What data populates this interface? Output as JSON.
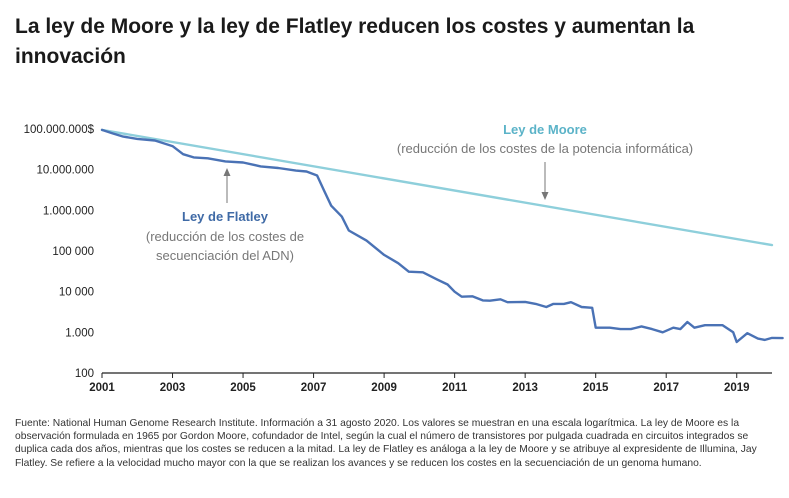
{
  "title": "La ley de Moore y la ley de Flatley reducen los costes y aumentan la innovación",
  "footnote": "Fuente: National Human Genome Research Institute. Información a 31 agosto 2020. Los valores se muestran en una escala logarítmica. La ley de Moore es la observación formulada en 1965 por Gordon Moore, cofundador de Intel, según la cual el número de transistores por pulgada cuadrada en circuitos integrados se duplica cada dos años, mientras que los costes se reducen a la mitad. La ley de Flatley es análoga a la ley de Moore y se atribuye al expresidente de Illumina, Jay Flatley. Se refiere a la velocidad mucho mayor con la que se realizan los avances y se reducen los costes en la secuenciación de un genoma humano.",
  "colors": {
    "moore": "#8ecfdb",
    "flatley": "#4a72b5",
    "moore_text": "#5bb3c8",
    "flatley_text": "#3f6aa6",
    "annotation": "#777777",
    "axis": "#222222"
  },
  "annotations": {
    "moore": {
      "title": "Ley de Moore",
      "subtitle": "(reducción de los costes de la potencia informática)"
    },
    "flatley": {
      "title": "Ley de Flatley",
      "subtitle_1": "(reducción de los costes de",
      "subtitle_2": "secuenciación del ADN)"
    }
  },
  "chart_data": {
    "type": "line",
    "title": "La ley de Moore y la ley de Flatley reducen los costes y aumentan la innovación",
    "y_scale": "log",
    "xlim": [
      2001,
      2020
    ],
    "ylim": [
      100,
      100000000
    ],
    "y_ticks": [
      {
        "value": 100000000,
        "label": "100.000.000$"
      },
      {
        "value": 10000000,
        "label": "10.000.000"
      },
      {
        "value": 1000000,
        "label": "1.000.000"
      },
      {
        "value": 100000,
        "label": "100 000"
      },
      {
        "value": 10000,
        "label": "10 000"
      },
      {
        "value": 1000,
        "label": "1.000"
      },
      {
        "value": 100,
        "label": "100"
      }
    ],
    "x_ticks": [
      {
        "value": 2001,
        "label": "2001"
      },
      {
        "value": 2003,
        "label": "2003"
      },
      {
        "value": 2005,
        "label": "2005"
      },
      {
        "value": 2007,
        "label": "2007"
      },
      {
        "value": 2009,
        "label": "2009"
      },
      {
        "value": 2011,
        "label": "2011"
      },
      {
        "value": 2013,
        "label": "2013"
      },
      {
        "value": 2015,
        "label": "2015"
      },
      {
        "value": 2017,
        "label": "2017"
      },
      {
        "value": 2019,
        "label": "2019"
      }
    ],
    "series": [
      {
        "name": "Ley de Moore",
        "points": [
          [
            2001.0,
            95000000
          ],
          [
            2020.0,
            140000
          ]
        ]
      },
      {
        "name": "Ley de Flatley",
        "points": [
          [
            2001.0,
            95000000
          ],
          [
            2001.3,
            78000000
          ],
          [
            2001.6,
            65000000
          ],
          [
            2002.0,
            57000000
          ],
          [
            2002.5,
            52000000
          ],
          [
            2003.0,
            38000000
          ],
          [
            2003.3,
            24000000
          ],
          [
            2003.6,
            20000000
          ],
          [
            2004.0,
            19000000
          ],
          [
            2004.5,
            16000000
          ],
          [
            2005.0,
            15000000
          ],
          [
            2005.5,
            12000000
          ],
          [
            2006.0,
            11000000
          ],
          [
            2006.5,
            9500000
          ],
          [
            2006.8,
            9000000
          ],
          [
            2007.1,
            7200000
          ],
          [
            2007.3,
            3000000
          ],
          [
            2007.5,
            1300000
          ],
          [
            2007.8,
            700000
          ],
          [
            2008.0,
            320000
          ],
          [
            2008.5,
            180000
          ],
          [
            2009.0,
            80000
          ],
          [
            2009.4,
            50000
          ],
          [
            2009.7,
            31000
          ],
          [
            2010.1,
            30000
          ],
          [
            2010.5,
            20000
          ],
          [
            2010.8,
            15000
          ],
          [
            2011.0,
            10000
          ],
          [
            2011.2,
            7500
          ],
          [
            2011.5,
            7700
          ],
          [
            2011.8,
            6100
          ],
          [
            2012.0,
            6000
          ],
          [
            2012.3,
            6500
          ],
          [
            2012.5,
            5500
          ],
          [
            2013.0,
            5600
          ],
          [
            2013.3,
            5000
          ],
          [
            2013.6,
            4200
          ],
          [
            2013.8,
            5000
          ],
          [
            2014.1,
            5000
          ],
          [
            2014.3,
            5500
          ],
          [
            2014.6,
            4200
          ],
          [
            2014.9,
            4000
          ],
          [
            2015.0,
            1300
          ],
          [
            2015.4,
            1300
          ],
          [
            2015.7,
            1200
          ],
          [
            2016.0,
            1200
          ],
          [
            2016.3,
            1400
          ],
          [
            2016.6,
            1200
          ],
          [
            2016.9,
            1000
          ],
          [
            2017.2,
            1300
          ],
          [
            2017.4,
            1200
          ],
          [
            2017.6,
            1800
          ],
          [
            2017.8,
            1300
          ],
          [
            2018.1,
            1500
          ],
          [
            2018.4,
            1500
          ],
          [
            2018.6,
            1500
          ],
          [
            2018.9,
            1000
          ],
          [
            2019.0,
            580
          ],
          [
            2019.3,
            950
          ],
          [
            2019.6,
            700
          ],
          [
            2019.8,
            650
          ],
          [
            2020.0,
            730
          ],
          [
            2020.3,
            720
          ]
        ]
      }
    ]
  }
}
